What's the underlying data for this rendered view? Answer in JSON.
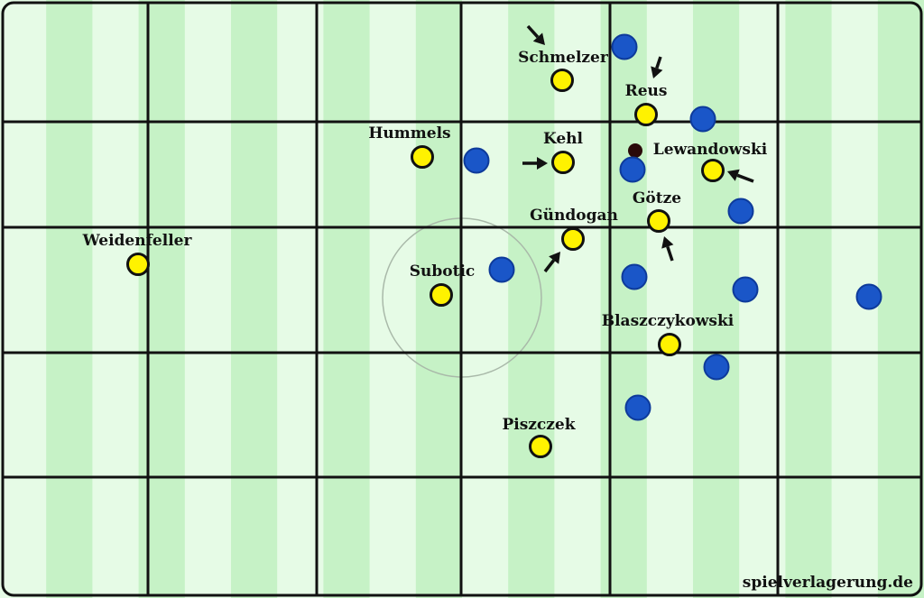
{
  "colors": {
    "stripe_dark": "#c6f2c6",
    "stripe_light": "#e6fbe6",
    "lines": "#111111",
    "center_circle": "#a9b9a9",
    "team_yellow": "#fff200",
    "team_blue": "#1a56c8",
    "ball": "#2a0a0a"
  },
  "credit": "spielverlagerung.de",
  "yellow_players": [
    {
      "name": "Weidenfeller"
    },
    {
      "name": "Hummels"
    },
    {
      "name": "Subotic"
    },
    {
      "name": "Piszczek"
    },
    {
      "name": "Schmelzer"
    },
    {
      "name": "Kehl"
    },
    {
      "name": "Gündogan"
    },
    {
      "name": "Reus"
    },
    {
      "name": "Götze"
    },
    {
      "name": "Lewandowski"
    },
    {
      "name": "Blaszczykowski"
    }
  ],
  "blue_players_count": 11,
  "arrows_count": 6,
  "ball": true
}
